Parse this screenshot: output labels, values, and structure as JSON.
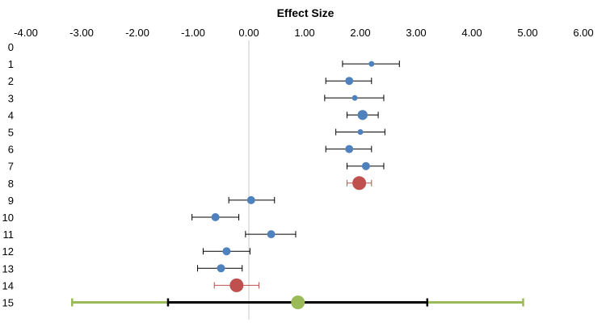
{
  "chart_data": {
    "type": "scatter",
    "title": "Effect Size",
    "xlim": [
      -4,
      6
    ],
    "x_ticks": [
      "-4.00",
      "-3.00",
      "-2.00",
      "-1.00",
      "0.00",
      "1.00",
      "2.00",
      "3.00",
      "4.00",
      "5.00",
      "6.00"
    ],
    "x_axis_position": "top",
    "ylim": [
      0,
      15
    ],
    "y_ticks": [
      "0",
      "1",
      "2",
      "3",
      "4",
      "5",
      "6",
      "7",
      "8",
      "9",
      "10",
      "11",
      "12",
      "13",
      "14",
      "15"
    ],
    "y_inverted": true,
    "grid": false,
    "zero_reference_line": true,
    "colors": {
      "study": "#4f81bd",
      "summary": "#c0504d",
      "summary_whisker": "#c0504d",
      "overall": "#9bbb59",
      "overall_inner_interval": "#000000",
      "whisker": "#000000",
      "zero_line": "#c8c8c8"
    },
    "points": [
      {
        "y": 1,
        "x": 2.2,
        "lo": 1.68,
        "hi": 2.7,
        "kind": "study",
        "size": "small"
      },
      {
        "y": 2,
        "x": 1.8,
        "lo": 1.38,
        "hi": 2.2,
        "kind": "study",
        "size": "medium"
      },
      {
        "y": 3,
        "x": 1.9,
        "lo": 1.36,
        "hi": 2.42,
        "kind": "study",
        "size": "small"
      },
      {
        "y": 4,
        "x": 2.04,
        "lo": 1.76,
        "hi": 2.32,
        "kind": "study",
        "size": "large"
      },
      {
        "y": 5,
        "x": 2.0,
        "lo": 1.56,
        "hi": 2.44,
        "kind": "study",
        "size": "small"
      },
      {
        "y": 6,
        "x": 1.8,
        "lo": 1.38,
        "hi": 2.2,
        "kind": "study",
        "size": "medium"
      },
      {
        "y": 7,
        "x": 2.1,
        "lo": 1.76,
        "hi": 2.42,
        "kind": "study",
        "size": "medium"
      },
      {
        "y": 8,
        "x": 1.98,
        "lo": 1.76,
        "hi": 2.2,
        "kind": "summary",
        "size": "xlarge"
      },
      {
        "y": 9,
        "x": 0.04,
        "lo": -0.36,
        "hi": 0.46,
        "kind": "study",
        "size": "medium"
      },
      {
        "y": 10,
        "x": -0.6,
        "lo": -1.02,
        "hi": -0.18,
        "kind": "study",
        "size": "medium"
      },
      {
        "y": 11,
        "x": 0.4,
        "lo": -0.06,
        "hi": 0.84,
        "kind": "study",
        "size": "medium"
      },
      {
        "y": 12,
        "x": -0.4,
        "lo": -0.82,
        "hi": 0.02,
        "kind": "study",
        "size": "medium"
      },
      {
        "y": 13,
        "x": -0.5,
        "lo": -0.92,
        "hi": -0.12,
        "kind": "study",
        "size": "medium"
      },
      {
        "y": 14,
        "x": -0.22,
        "lo": -0.62,
        "hi": 0.18,
        "kind": "summary",
        "size": "xlarge"
      }
    ],
    "overall": {
      "y": 15,
      "x": 0.88,
      "lo": -1.45,
      "hi": 3.2,
      "lo_outer": -3.17,
      "hi_outer": 4.92
    }
  }
}
